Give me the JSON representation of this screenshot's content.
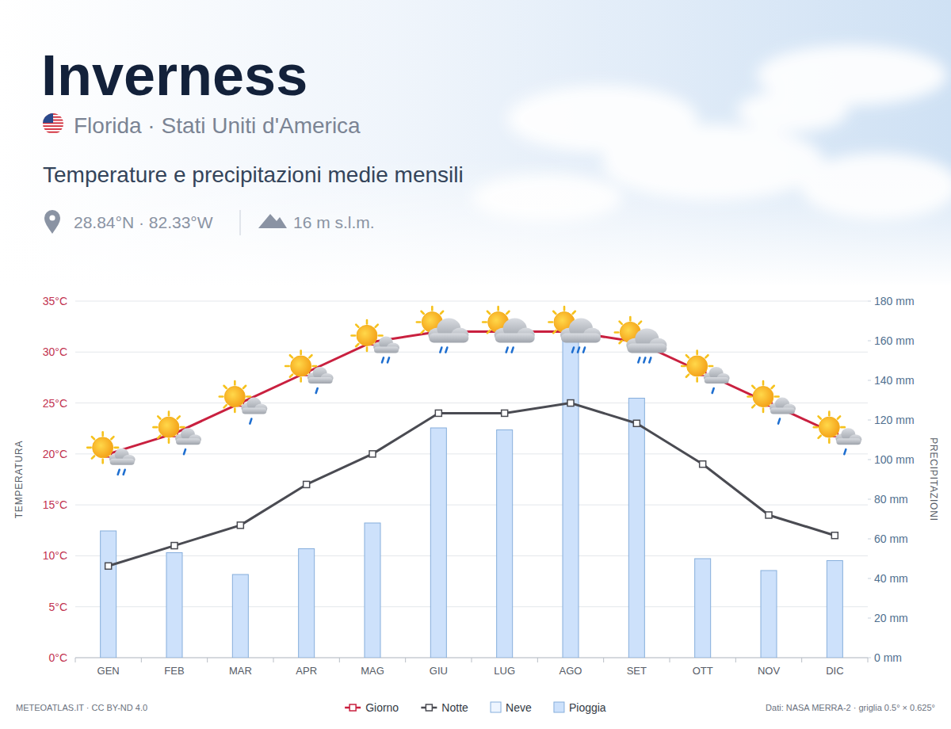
{
  "chart_data": {
    "type": "bar",
    "title": "Inverness",
    "subtitle": "Florida · Stati Uniti d'America",
    "annotations": [
      "Temperature e precipitazioni medie mensili",
      "28.84°N · 82.33°W",
      "16 m s.l.m.",
      "METEOATLAS.IT · CC BY-ND 4.0",
      "Dati: NASA MERRA-2 · griglia 0.5° × 0.625°"
    ],
    "ylabel": "TEMPERATURA",
    "y2label": "PRECIPITAZIONI",
    "categories": [
      "GEN",
      "FEB",
      "MAR",
      "APR",
      "MAG",
      "GIU",
      "LUG",
      "AGO",
      "SET",
      "OTT",
      "NOV",
      "DIC"
    ],
    "ylim": [
      0,
      35
    ],
    "yticks": [
      {
        "value": 0,
        "label": "0°C"
      },
      {
        "value": 5,
        "label": "5°C"
      },
      {
        "value": 10,
        "label": "10°C"
      },
      {
        "value": 15,
        "label": "15°C"
      },
      {
        "value": 20,
        "label": "20°C"
      },
      {
        "value": 25,
        "label": "25°C"
      },
      {
        "value": 30,
        "label": "30°C"
      },
      {
        "value": 35,
        "label": "35°C"
      }
    ],
    "y2lim": [
      0,
      180
    ],
    "y2ticks": [
      {
        "value": 0,
        "label": "0 mm"
      },
      {
        "value": 20,
        "label": "20 mm"
      },
      {
        "value": 40,
        "label": "40 mm"
      },
      {
        "value": 60,
        "label": "60 mm"
      },
      {
        "value": 80,
        "label": "80 mm"
      },
      {
        "value": 100,
        "label": "100 mm"
      },
      {
        "value": 120,
        "label": "120 mm"
      },
      {
        "value": 140,
        "label": "140 mm"
      },
      {
        "value": 160,
        "label": "160 mm"
      },
      {
        "value": 180,
        "label": "180 mm"
      }
    ],
    "grid": true,
    "legend": "bottom",
    "stacked": true,
    "series": [
      {
        "name": "Giorno",
        "type": "line",
        "color": "#c9203f",
        "marker": "square",
        "values": [
          20,
          22,
          25,
          28,
          31,
          32,
          32,
          32,
          31,
          28,
          25,
          22
        ]
      },
      {
        "name": "Notte",
        "type": "line",
        "color": "#4a4b52",
        "marker": "square",
        "values": [
          9,
          11,
          13,
          17,
          20,
          24,
          24,
          25,
          23,
          19,
          14,
          12
        ]
      },
      {
        "name": "Neve",
        "type": "bar",
        "axis": "y2",
        "color": "#eef5ff",
        "values": [
          0,
          0,
          0,
          0,
          0,
          0,
          0,
          0,
          0,
          0,
          0,
          0
        ]
      },
      {
        "name": "Pioggia",
        "type": "bar",
        "axis": "y2",
        "color": "#cde1fb",
        "values": [
          64,
          53,
          42,
          55,
          68,
          116,
          115,
          161,
          131,
          50,
          44,
          49
        ]
      }
    ]
  }
}
